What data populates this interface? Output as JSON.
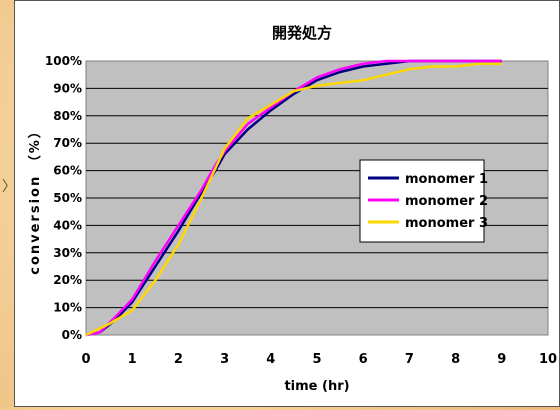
{
  "chart_data": {
    "type": "line",
    "title": "開発処方",
    "xlabel": "time (hr)",
    "ylabel": "conversion （%）",
    "xlim": [
      0,
      10
    ],
    "ylim": [
      0,
      100
    ],
    "x_ticks": [
      "0",
      "1",
      "2",
      "3",
      "4",
      "5",
      "6",
      "7",
      "8",
      "9",
      "10"
    ],
    "y_ticks": [
      "0%",
      "10%",
      "20%",
      "30%",
      "40%",
      "50%",
      "60%",
      "70%",
      "80%",
      "90%",
      "100%"
    ],
    "grid": true,
    "legend_position": "right-middle",
    "series": [
      {
        "name": "monomer 1",
        "color": "#000080",
        "x": [
          0,
          0.3,
          0.6,
          1,
          1.5,
          2,
          2.5,
          2.8,
          3,
          3.5,
          4,
          4.5,
          5,
          5.5,
          6,
          6.5,
          7,
          7.5,
          8,
          8.5,
          9
        ],
        "y": [
          0,
          1,
          5,
          12,
          25,
          38,
          52,
          60,
          66,
          75,
          82,
          88,
          93,
          96,
          98,
          99,
          100,
          100,
          100,
          100,
          100
        ]
      },
      {
        "name": "monomer 2",
        "color": "#ff00ff",
        "x": [
          0,
          0.3,
          0.6,
          1,
          1.5,
          2,
          2.5,
          2.8,
          3,
          3.5,
          4,
          4.5,
          5,
          5.5,
          6,
          6.5,
          7,
          7.5,
          8,
          8.5,
          9
        ],
        "y": [
          0,
          1,
          6,
          13,
          27,
          40,
          53,
          62,
          67,
          77,
          83,
          89,
          94,
          97,
          99,
          100,
          100,
          100,
          100,
          100,
          100
        ]
      },
      {
        "name": "monomer 3",
        "color": "#ffd700",
        "x": [
          0,
          0.5,
          0.8,
          1,
          1.5,
          2,
          2.5,
          3,
          3.5,
          4,
          4.5,
          5,
          5.5,
          6,
          6.5,
          7,
          7.5,
          8,
          8.5,
          9
        ],
        "y": [
          0,
          4,
          7,
          9,
          20,
          33,
          50,
          68,
          79,
          84,
          89,
          91,
          92,
          93,
          95,
          97,
          98,
          98,
          99,
          99
        ]
      }
    ]
  }
}
